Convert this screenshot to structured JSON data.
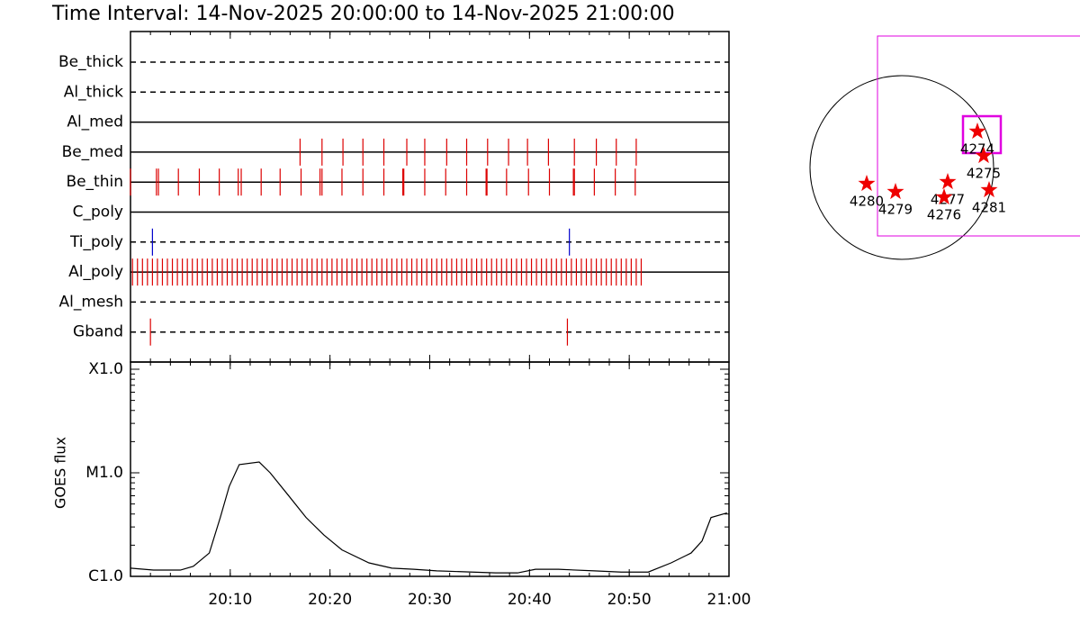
{
  "chart_data": [
    {
      "type": "event",
      "title": "Time Interval: 14-Nov-2025 20:00:00 to 14-Nov-2025 21:00:00",
      "xlim": [
        0,
        60
      ],
      "rows": [
        {
          "label": "Be_thick",
          "line": "dashed",
          "color": "#dd0000",
          "times": []
        },
        {
          "label": "Al_thick",
          "line": "dashed",
          "color": "#dd0000",
          "times": []
        },
        {
          "label": "Al_med",
          "line": "solid",
          "color": "#dd0000",
          "times": []
        },
        {
          "label": "Be_med",
          "line": "solid",
          "color": "#dd0000",
          "times": [
            17.0,
            19.2,
            21.3,
            23.3,
            25.4,
            27.7,
            29.5,
            31.7,
            33.7,
            35.8,
            37.9,
            39.8,
            41.9,
            44.5,
            46.7,
            48.7,
            50.7
          ]
        },
        {
          "label": "Be_thin",
          "line": "solid",
          "color": "#dd0000",
          "times": [
            0,
            2.6,
            2.8,
            4.8,
            6.9,
            8.9,
            10.8,
            11.1,
            13.1,
            15.0,
            17.1,
            19.0,
            19.2,
            21.2,
            23.3,
            25.4,
            27.3,
            27.4,
            29.5,
            31.6,
            33.7,
            35.65,
            35.74,
            37.7,
            39.9,
            42.0,
            44.4,
            44.5,
            46.5,
            48.6,
            50.6
          ]
        },
        {
          "label": "C_poly",
          "line": "solid",
          "color": "#dd0000",
          "times": []
        },
        {
          "label": "Ti_poly",
          "line": "dashed",
          "color": "#0000cc",
          "times": [
            2.2,
            44.0
          ]
        },
        {
          "label": "Al_poly",
          "line": "solid",
          "color": "#dd0000",
          "times": [
            0.2,
            0.7,
            1.2,
            1.7,
            2.2,
            2.7,
            3.2,
            3.7,
            4.2,
            4.7,
            5.2,
            5.7,
            6.2,
            6.7,
            7.2,
            7.7,
            8.2,
            8.7,
            9.2,
            9.7,
            10.2,
            10.7,
            11.2,
            11.7,
            12.2,
            12.7,
            13.2,
            13.7,
            14.2,
            14.7,
            15.2,
            15.7,
            16.2,
            16.7,
            17.2,
            17.7,
            18.2,
            18.7,
            19.2,
            19.7,
            20.2,
            20.7,
            21.2,
            21.7,
            22.2,
            22.7,
            23.2,
            23.7,
            24.2,
            24.7,
            25.2,
            25.7,
            26.2,
            26.7,
            27.2,
            27.7,
            28.2,
            28.7,
            29.2,
            29.7,
            30.2,
            30.7,
            31.2,
            31.7,
            32.2,
            32.7,
            33.2,
            33.7,
            34.2,
            34.7,
            35.2,
            35.7,
            36.2,
            36.7,
            37.2,
            37.7,
            38.2,
            38.7,
            39.2,
            39.7,
            40.2,
            40.7,
            41.2,
            41.7,
            42.2,
            42.7,
            43.2,
            43.7,
            44.2,
            44.7,
            45.2,
            45.7,
            46.2,
            46.7,
            47.2,
            47.7,
            48.2,
            48.7,
            49.2,
            49.7,
            50.2,
            50.7,
            51.2
          ]
        },
        {
          "label": "Al_mesh",
          "line": "dashed",
          "color": "#dd0000",
          "times": []
        },
        {
          "label": "Gband",
          "line": "dashed",
          "color": "#dd0000",
          "times": [
            2.0,
            43.8
          ]
        }
      ]
    },
    {
      "type": "line",
      "ylabel": "GOES flux",
      "log_y": true,
      "color": "#000000",
      "xlim": [
        0,
        60
      ],
      "ylim": [
        1e-06,
        0.0001
      ],
      "xticks": [
        {
          "value": 10,
          "label": "20:10"
        },
        {
          "value": 20,
          "label": "20:20"
        },
        {
          "value": 30,
          "label": "20:30"
        },
        {
          "value": 40,
          "label": "20:40"
        },
        {
          "value": 50,
          "label": "20:50"
        },
        {
          "value": 60,
          "label": "21:00"
        }
      ],
      "yticks": [
        {
          "value": 1e-06,
          "label": "C1.0"
        },
        {
          "value": 1e-05,
          "label": "M1.0"
        },
        {
          "value": 0.0001,
          "label": "X1.0"
        }
      ],
      "x": [
        0,
        2.3,
        5.0,
        6.3,
        7.9,
        9.0,
        9.9,
        10.9,
        12.9,
        14.0,
        15.8,
        17.6,
        19.4,
        21.2,
        23.9,
        26.2,
        28.4,
        30.7,
        34.3,
        36.6,
        38.8,
        40.6,
        42.9,
        46.5,
        49.2,
        51.9,
        54.2,
        56.2,
        57.3,
        58.2,
        59.8
      ],
      "values": [
        1.2e-06,
        1.15e-06,
        1.15e-06,
        1.25e-06,
        1.68e-06,
        3.7e-06,
        7.4e-06,
        1.2e-05,
        1.27e-05,
        1e-05,
        6.1e-06,
        3.7e-06,
        2.5e-06,
        1.8e-06,
        1.35e-06,
        1.2e-06,
        1.17e-06,
        1.13e-06,
        1.1e-06,
        1.08e-06,
        1.08e-06,
        1.17e-06,
        1.17e-06,
        1.13e-06,
        1.1e-06,
        1.1e-06,
        1.35e-06,
        1.68e-06,
        2.2e-06,
        3.7e-06,
        4.1e-06
      ]
    }
  ],
  "map": {
    "regions": [
      "4274",
      "4275",
      "4277",
      "4276",
      "4280",
      "4279",
      "4281"
    ]
  }
}
